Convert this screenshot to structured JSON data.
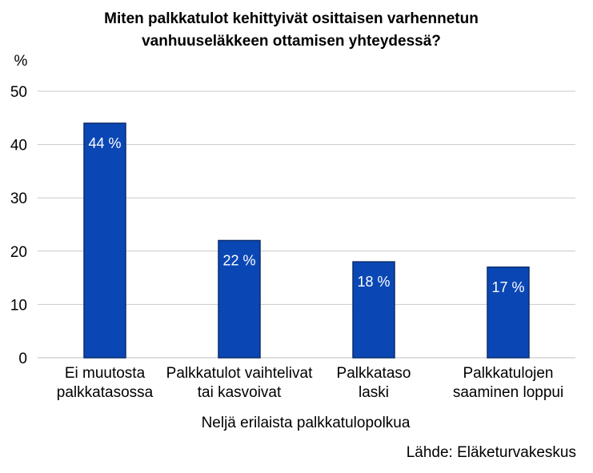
{
  "chart_data": {
    "type": "bar",
    "title_lines": [
      "Miten palkkatulot kehittyivät osittaisen varhennetun",
      "vanhuuseläkkeen ottamisen yhteydessä?"
    ],
    "ylabel": "%",
    "xlabel": "Neljä erilaista palkkatulopolkua",
    "categories": [
      [
        "Ei muutosta",
        "palkkatasossa"
      ],
      [
        "Palkkatulot vaihtelivat",
        "tai kasvoivat"
      ],
      [
        "Palkkataso",
        "laski"
      ],
      [
        "Palkkatulojen",
        "saaminen loppui"
      ]
    ],
    "values": [
      44,
      22,
      18,
      17
    ],
    "data_labels": [
      "44 %",
      "22 %",
      "18 %",
      "17 %"
    ],
    "ylim": [
      0,
      50
    ],
    "yticks": [
      0,
      10,
      20,
      30,
      40,
      50
    ],
    "grid": true,
    "legend": "none",
    "bar_color": "#0a47b5",
    "bar_edge_color": "#0b2d6b",
    "grid_color": "#c9c9c9"
  },
  "source": "Lähde: Eläketurvakeskus"
}
